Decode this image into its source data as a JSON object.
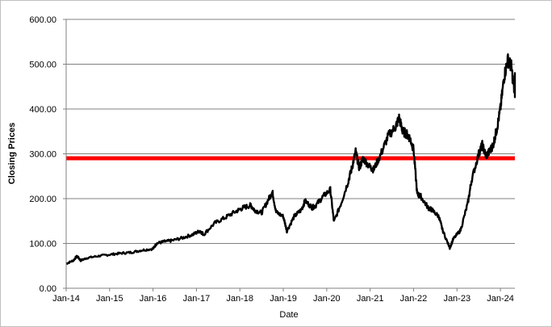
{
  "chart_data": {
    "type": "line",
    "title": "",
    "xlabel": "Date",
    "ylabel": "Closing Prices",
    "ylim": [
      0,
      600
    ],
    "y_ticks": [
      "0.00",
      "100.00",
      "200.00",
      "300.00",
      "400.00",
      "500.00",
      "600.00"
    ],
    "x_ticks": [
      "Jan-14",
      "Jan-15",
      "Jan-16",
      "Jan-17",
      "Jan-18",
      "Jan-19",
      "Jan-20",
      "Jan-21",
      "Jan-22",
      "Jan-23",
      "Jan-24"
    ],
    "xlim": [
      "2014-01",
      "2024-05"
    ],
    "grid": "horizontal",
    "reference_line": {
      "value": 290,
      "color": "#ff0000"
    },
    "series": [
      {
        "color": "#000000",
        "points": [
          [
            "2014-01",
            55
          ],
          [
            "2014-03",
            62
          ],
          [
            "2014-04",
            72
          ],
          [
            "2014-05",
            62
          ],
          [
            "2014-07",
            68
          ],
          [
            "2014-10",
            72
          ],
          [
            "2015-01",
            75
          ],
          [
            "2015-04",
            78
          ],
          [
            "2015-07",
            80
          ],
          [
            "2015-10",
            85
          ],
          [
            "2016-01",
            88
          ],
          [
            "2016-02",
            100
          ],
          [
            "2016-04",
            104
          ],
          [
            "2016-06",
            106
          ],
          [
            "2016-09",
            112
          ],
          [
            "2016-12",
            120
          ],
          [
            "2017-02",
            128
          ],
          [
            "2017-03",
            120
          ],
          [
            "2017-06",
            145
          ],
          [
            "2017-09",
            158
          ],
          [
            "2017-12",
            172
          ],
          [
            "2018-02",
            180
          ],
          [
            "2018-04",
            185
          ],
          [
            "2018-05",
            175
          ],
          [
            "2018-07",
            168
          ],
          [
            "2018-09",
            200
          ],
          [
            "2018-10",
            215
          ],
          [
            "2018-11",
            170
          ],
          [
            "2019-01",
            160
          ],
          [
            "2019-02",
            128
          ],
          [
            "2019-04",
            160
          ],
          [
            "2019-06",
            175
          ],
          [
            "2019-07",
            195
          ],
          [
            "2019-09",
            180
          ],
          [
            "2019-10",
            185
          ],
          [
            "2019-12",
            205
          ],
          [
            "2020-02",
            220
          ],
          [
            "2020-03",
            148
          ],
          [
            "2020-05",
            190
          ],
          [
            "2020-07",
            240
          ],
          [
            "2020-08",
            270
          ],
          [
            "2020-09",
            305
          ],
          [
            "2020-10",
            268
          ],
          [
            "2020-11",
            290
          ],
          [
            "2021-01",
            270
          ],
          [
            "2021-02",
            265
          ],
          [
            "2021-04",
            300
          ],
          [
            "2021-06",
            340
          ],
          [
            "2021-08",
            360
          ],
          [
            "2021-09",
            380
          ],
          [
            "2021-10",
            350
          ],
          [
            "2021-11",
            345
          ],
          [
            "2021-12",
            335
          ],
          [
            "2022-01",
            310
          ],
          [
            "2022-02",
            210
          ],
          [
            "2022-03",
            205
          ],
          [
            "2022-05",
            180
          ],
          [
            "2022-06",
            175
          ],
          [
            "2022-08",
            160
          ],
          [
            "2022-09",
            130
          ],
          [
            "2022-11",
            90
          ],
          [
            "2022-12",
            110
          ],
          [
            "2023-02",
            130
          ],
          [
            "2023-04",
            190
          ],
          [
            "2023-05",
            240
          ],
          [
            "2023-07",
            300
          ],
          [
            "2023-08",
            320
          ],
          [
            "2023-09",
            295
          ],
          [
            "2023-10",
            305
          ],
          [
            "2023-11",
            320
          ],
          [
            "2023-12",
            355
          ],
          [
            "2024-01",
            400
          ],
          [
            "2024-02",
            470
          ],
          [
            "2024-03",
            510
          ],
          [
            "2024-04",
            495
          ],
          [
            "2024-05",
            430
          ],
          [
            "2024-05",
            480
          ]
        ]
      }
    ]
  }
}
